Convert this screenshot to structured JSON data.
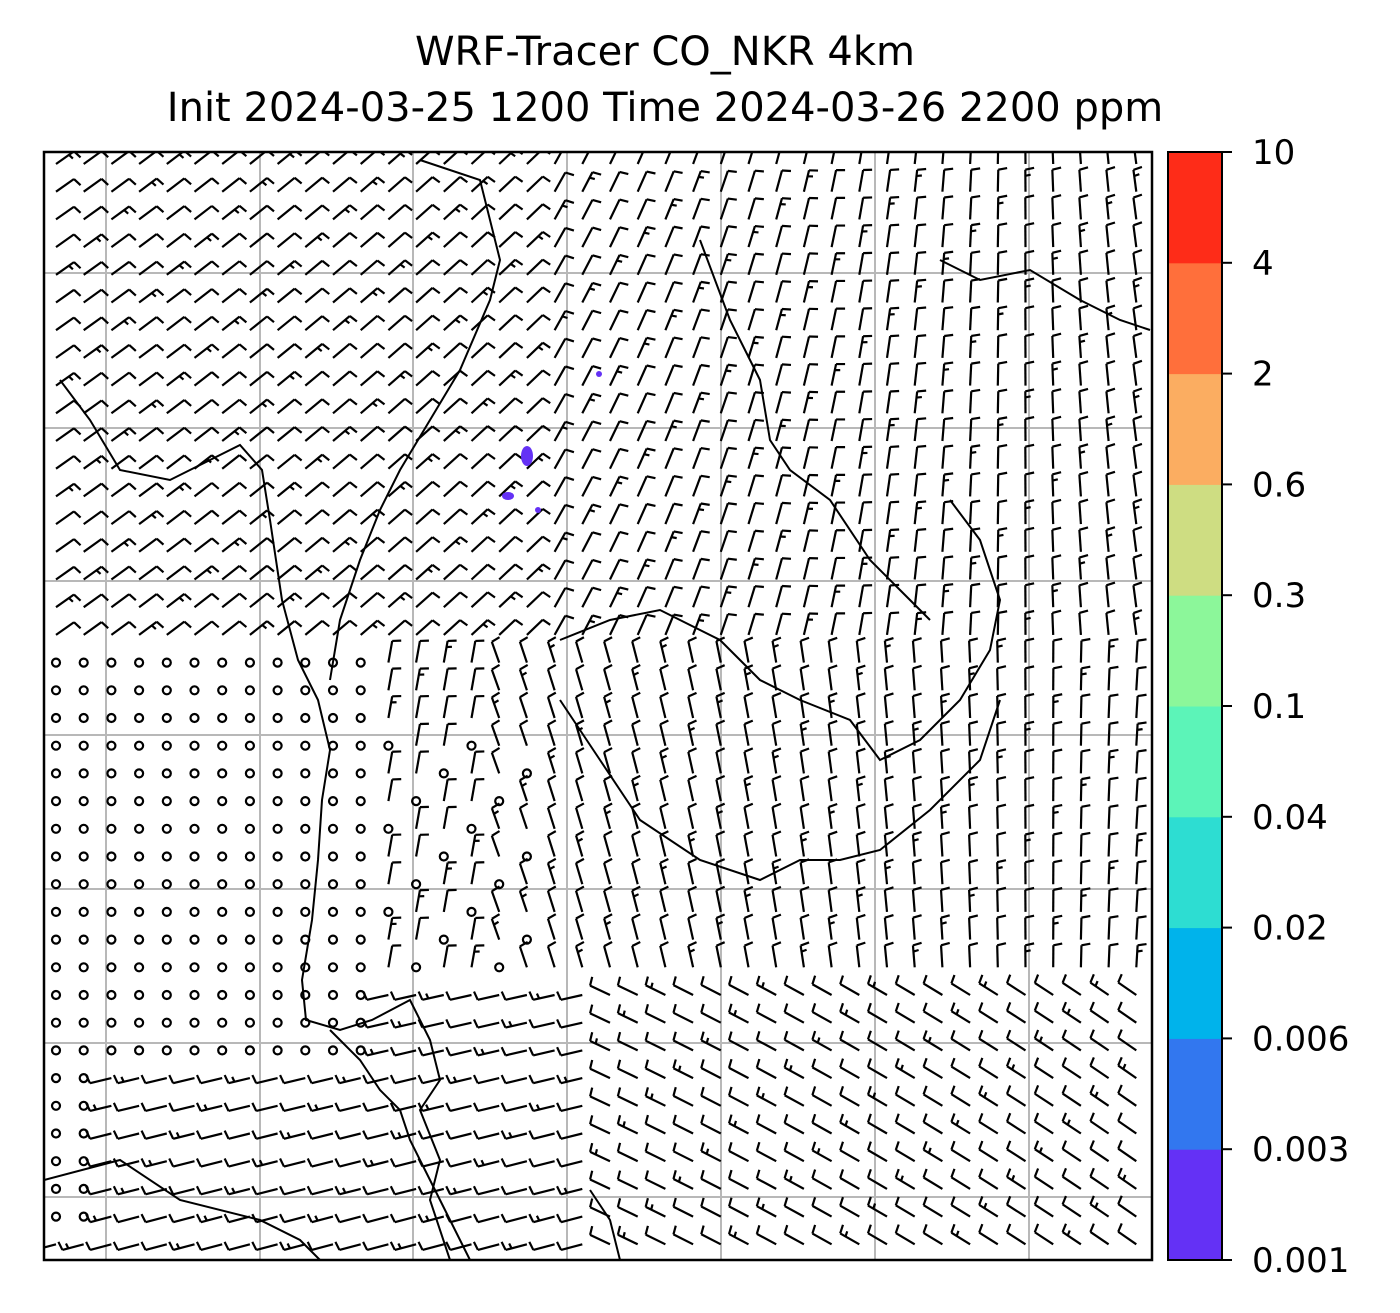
{
  "title": {
    "line1": "WRF-Tracer CO_NKR 4km",
    "line2": "Init 2024-03-25 1200 Time 2024-03-26 2200 ppm"
  },
  "colorbar": {
    "levels": [
      "0.001",
      "0.003",
      "0.006",
      "0.02",
      "0.04",
      "0.1",
      "0.3",
      "0.6",
      "2",
      "4",
      "10"
    ],
    "colors": [
      "#6431f5",
      "#3277ef",
      "#00b3eb",
      "#2dddd2",
      "#5cf4b8",
      "#8cf79a",
      "#cedd82",
      "#fbad61",
      "#ff6f3b",
      "#fe2c18"
    ]
  },
  "map": {
    "tracer_color": "#6431f5",
    "grid_color": "#b8b8b8",
    "barb_color": "#000000",
    "coast_color": "#000000"
  }
}
